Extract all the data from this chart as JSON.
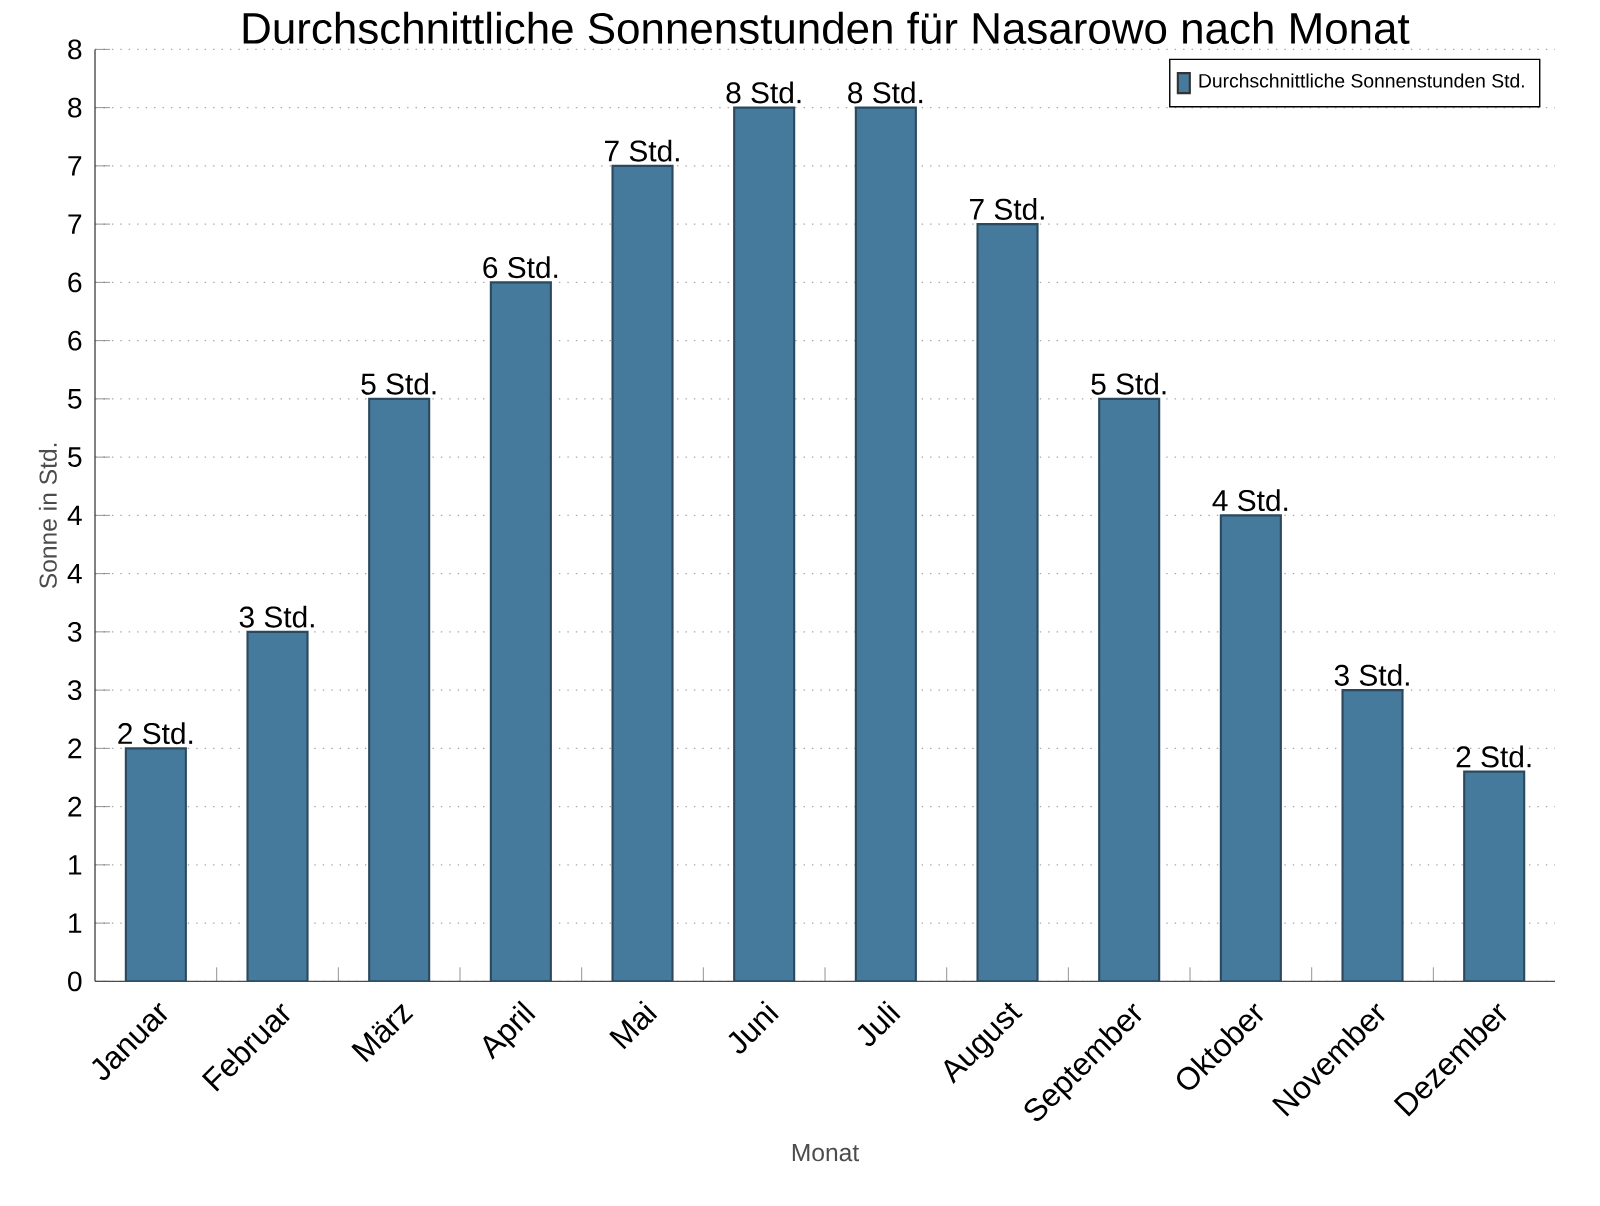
{
  "chart_data": {
    "type": "bar",
    "title": "Durchschnittliche Sonnenstunden für Nasarowo nach Monat",
    "xlabel": "Monat",
    "ylabel": "Sonne in Std.",
    "categories": [
      "Januar",
      "Februar",
      "März",
      "April",
      "Mai",
      "Juni",
      "Juli",
      "August",
      "September",
      "Oktober",
      "November",
      "Dezember"
    ],
    "series": [
      {
        "name": "Durchschnittliche Sonnenstunden Std.",
        "color": "#467a9c",
        "values": [
          2.0,
          3.0,
          5.0,
          6.0,
          7.0,
          7.5,
          7.5,
          6.5,
          5.0,
          4.0,
          2.5,
          1.8
        ],
        "value_labels": [
          "2 Std.",
          "3 Std.",
          "5 Std.",
          "6 Std.",
          "7 Std.",
          "8 Std.",
          "8 Std.",
          "7 Std.",
          "5 Std.",
          "4 Std.",
          "3 Std.",
          "2 Std."
        ]
      }
    ],
    "ylim": [
      0,
      8
    ],
    "yticks": [
      0,
      {
        "value": 0.5,
        "label": "1"
      },
      1,
      {
        "value": 1.5,
        "label": "2"
      },
      2,
      {
        "value": 2.5,
        "label": "3"
      },
      3,
      {
        "value": 3.5,
        "label": "4"
      },
      4,
      {
        "value": 4.5,
        "label": "5"
      },
      5,
      {
        "value": 5.5,
        "label": "6"
      },
      6,
      {
        "value": 6.5,
        "label": "7"
      },
      7,
      {
        "value": 7.5,
        "label": "8"
      },
      8
    ],
    "grid": "y",
    "legend": "top right"
  }
}
